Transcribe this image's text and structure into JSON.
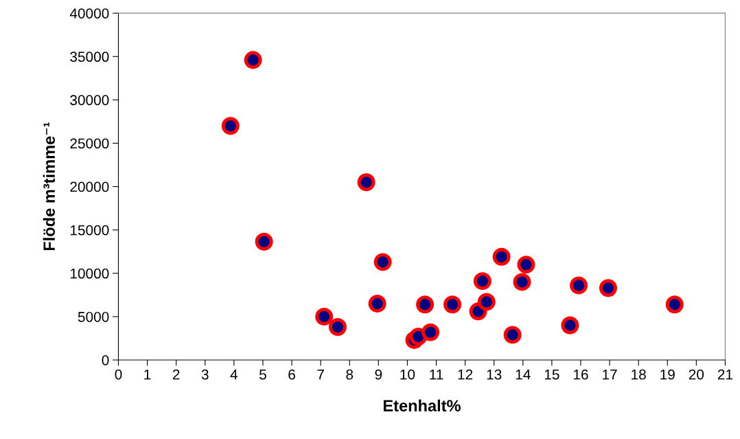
{
  "chart_data": {
    "type": "scatter",
    "xlabel": "Etenhalt%",
    "ylabel": "Flöde m³timme⁻¹",
    "x": [
      3.88,
      4.66,
      5.04,
      7.12,
      7.59,
      8.58,
      8.96,
      9.15,
      10.24,
      10.38,
      10.61,
      10.8,
      11.56,
      12.45,
      12.6,
      12.74,
      13.26,
      13.64,
      13.97,
      14.11,
      15.63,
      15.93,
      16.95,
      19.25
    ],
    "values": [
      27000,
      34600,
      13650,
      5000,
      3800,
      20500,
      6500,
      11300,
      2300,
      2700,
      6400,
      3200,
      6400,
      5600,
      9100,
      6700,
      11900,
      2900,
      9000,
      11000,
      4000,
      8600,
      8300,
      6400
    ],
    "color": "#000080",
    "marker": "circle",
    "grid": false,
    "xlim": [
      0,
      21
    ],
    "xticks": [
      0,
      1,
      2,
      3,
      4,
      5,
      6,
      7,
      8,
      9,
      10,
      11,
      12,
      13,
      14,
      15,
      16,
      17,
      18,
      19,
      20,
      21
    ],
    "ylim": [
      0,
      40000
    ],
    "yticks": [
      0,
      5000,
      10000,
      15000,
      20000,
      25000,
      30000,
      35000,
      40000
    ]
  }
}
